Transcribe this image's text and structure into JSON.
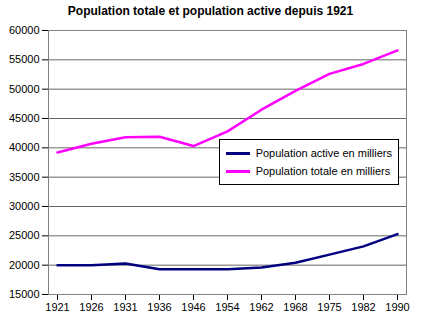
{
  "chart_data": {
    "type": "line",
    "title": "Population totale et population active depuis 1921",
    "categories": [
      "1921",
      "1926",
      "1931",
      "1936",
      "1946",
      "1954",
      "1962",
      "1968",
      "1975",
      "1982",
      "1990"
    ],
    "series": [
      {
        "name": "Population active en milliers",
        "color": "#000080",
        "values": [
          20000,
          20000,
          20300,
          19300,
          19300,
          19300,
          19600,
          20400,
          21800,
          23200,
          25300
        ]
      },
      {
        "name": "Population totale en milliers",
        "color": "#ff00ff",
        "values": [
          39200,
          40700,
          41800,
          41900,
          40300,
          42800,
          46500,
          49700,
          52600,
          54300,
          56600
        ]
      }
    ],
    "ylim": [
      15000,
      60000
    ],
    "yticks": [
      15000,
      20000,
      25000,
      30000,
      35000,
      40000,
      45000,
      50000,
      55000,
      60000
    ],
    "grid": true,
    "legend": "right"
  }
}
